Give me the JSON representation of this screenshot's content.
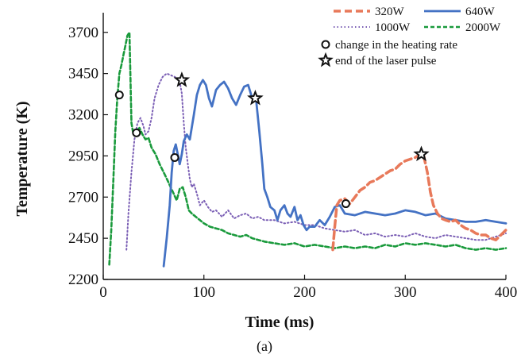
{
  "caption": "(a)",
  "chart_data": {
    "type": "line",
    "xlabel": "Time (ms)",
    "ylabel": "Temperature (K)",
    "xlim": [
      0,
      400
    ],
    "ylim": [
      2200,
      3800
    ],
    "xticks": [
      0,
      100,
      200,
      300,
      400
    ],
    "yticks": [
      2200,
      2450,
      2700,
      2950,
      3200,
      3450,
      3700
    ],
    "grid": false,
    "legend_position": "top-right",
    "series": [
      {
        "name": "320W",
        "color": "#e8795a",
        "style": "dashed",
        "points": [
          [
            228,
            2380
          ],
          [
            230,
            2520
          ],
          [
            232,
            2650
          ],
          [
            235,
            2680
          ],
          [
            240,
            2690
          ],
          [
            245,
            2660
          ],
          [
            250,
            2700
          ],
          [
            255,
            2740
          ],
          [
            260,
            2760
          ],
          [
            265,
            2790
          ],
          [
            270,
            2800
          ],
          [
            275,
            2820
          ],
          [
            280,
            2840
          ],
          [
            285,
            2860
          ],
          [
            290,
            2870
          ],
          [
            295,
            2900
          ],
          [
            300,
            2920
          ],
          [
            305,
            2930
          ],
          [
            310,
            2940
          ],
          [
            315,
            2960
          ],
          [
            318,
            2960
          ],
          [
            322,
            2850
          ],
          [
            325,
            2730
          ],
          [
            328,
            2650
          ],
          [
            332,
            2600
          ],
          [
            336,
            2570
          ],
          [
            340,
            2560
          ],
          [
            345,
            2550
          ],
          [
            350,
            2560
          ],
          [
            355,
            2530
          ],
          [
            360,
            2510
          ],
          [
            365,
            2500
          ],
          [
            370,
            2480
          ],
          [
            375,
            2470
          ],
          [
            380,
            2470
          ],
          [
            385,
            2450
          ],
          [
            390,
            2440
          ],
          [
            395,
            2470
          ],
          [
            400,
            2500
          ]
        ]
      },
      {
        "name": "640W",
        "color": "#4472c4",
        "style": "solid",
        "points": [
          [
            60,
            2280
          ],
          [
            63,
            2450
          ],
          [
            66,
            2650
          ],
          [
            68,
            2850
          ],
          [
            70,
            2980
          ],
          [
            72,
            3020
          ],
          [
            74,
            2960
          ],
          [
            76,
            2900
          ],
          [
            78,
            2960
          ],
          [
            80,
            3040
          ],
          [
            83,
            3080
          ],
          [
            86,
            3050
          ],
          [
            90,
            3200
          ],
          [
            93,
            3320
          ],
          [
            96,
            3380
          ],
          [
            99,
            3410
          ],
          [
            102,
            3380
          ],
          [
            105,
            3300
          ],
          [
            108,
            3250
          ],
          [
            112,
            3350
          ],
          [
            116,
            3380
          ],
          [
            120,
            3400
          ],
          [
            124,
            3360
          ],
          [
            128,
            3300
          ],
          [
            132,
            3260
          ],
          [
            136,
            3320
          ],
          [
            140,
            3370
          ],
          [
            144,
            3380
          ],
          [
            148,
            3300
          ],
          [
            152,
            3280
          ],
          [
            155,
            3100
          ],
          [
            158,
            2900
          ],
          [
            160,
            2750
          ],
          [
            163,
            2700
          ],
          [
            166,
            2640
          ],
          [
            170,
            2620
          ],
          [
            173,
            2560
          ],
          [
            176,
            2620
          ],
          [
            180,
            2650
          ],
          [
            183,
            2600
          ],
          [
            186,
            2580
          ],
          [
            190,
            2640
          ],
          [
            193,
            2560
          ],
          [
            196,
            2590
          ],
          [
            199,
            2530
          ],
          [
            202,
            2500
          ],
          [
            205,
            2520
          ],
          [
            210,
            2520
          ],
          [
            215,
            2560
          ],
          [
            220,
            2530
          ],
          [
            225,
            2580
          ],
          [
            230,
            2640
          ],
          [
            235,
            2650
          ],
          [
            240,
            2600
          ],
          [
            250,
            2590
          ],
          [
            260,
            2610
          ],
          [
            270,
            2600
          ],
          [
            280,
            2590
          ],
          [
            290,
            2600
          ],
          [
            300,
            2620
          ],
          [
            310,
            2610
          ],
          [
            320,
            2590
          ],
          [
            330,
            2600
          ],
          [
            340,
            2570
          ],
          [
            350,
            2560
          ],
          [
            360,
            2550
          ],
          [
            370,
            2550
          ],
          [
            380,
            2560
          ],
          [
            390,
            2550
          ],
          [
            400,
            2540
          ]
        ]
      },
      {
        "name": "1000W",
        "color": "#7b5fb5",
        "style": "dotted",
        "points": [
          [
            23,
            2380
          ],
          [
            25,
            2600
          ],
          [
            28,
            2850
          ],
          [
            31,
            3050
          ],
          [
            34,
            3150
          ],
          [
            37,
            3180
          ],
          [
            40,
            3130
          ],
          [
            42,
            3080
          ],
          [
            45,
            3100
          ],
          [
            48,
            3180
          ],
          [
            51,
            3300
          ],
          [
            55,
            3380
          ],
          [
            59,
            3430
          ],
          [
            63,
            3450
          ],
          [
            67,
            3440
          ],
          [
            71,
            3430
          ],
          [
            73,
            3420
          ],
          [
            76,
            3400
          ],
          [
            78,
            3330
          ],
          [
            80,
            3150
          ],
          [
            82,
            3000
          ],
          [
            84,
            2900
          ],
          [
            86,
            2810
          ],
          [
            88,
            2760
          ],
          [
            90,
            2780
          ],
          [
            93,
            2720
          ],
          [
            96,
            2650
          ],
          [
            100,
            2680
          ],
          [
            104,
            2640
          ],
          [
            108,
            2610
          ],
          [
            112,
            2620
          ],
          [
            118,
            2580
          ],
          [
            124,
            2620
          ],
          [
            130,
            2570
          ],
          [
            136,
            2590
          ],
          [
            142,
            2600
          ],
          [
            148,
            2570
          ],
          [
            154,
            2580
          ],
          [
            160,
            2560
          ],
          [
            170,
            2560
          ],
          [
            180,
            2540
          ],
          [
            190,
            2550
          ],
          [
            200,
            2530
          ],
          [
            210,
            2530
          ],
          [
            220,
            2510
          ],
          [
            230,
            2500
          ],
          [
            240,
            2490
          ],
          [
            250,
            2500
          ],
          [
            260,
            2470
          ],
          [
            270,
            2480
          ],
          [
            280,
            2460
          ],
          [
            290,
            2470
          ],
          [
            300,
            2460
          ],
          [
            310,
            2480
          ],
          [
            320,
            2460
          ],
          [
            330,
            2450
          ],
          [
            340,
            2470
          ],
          [
            350,
            2460
          ],
          [
            360,
            2450
          ],
          [
            370,
            2440
          ],
          [
            380,
            2440
          ],
          [
            390,
            2460
          ],
          [
            400,
            2480
          ]
        ]
      },
      {
        "name": "2000W",
        "color": "#1a9a3c",
        "style": "dashed",
        "points": [
          [
            6,
            2290
          ],
          [
            8,
            2500
          ],
          [
            10,
            2800
          ],
          [
            12,
            3100
          ],
          [
            14,
            3300
          ],
          [
            16,
            3450
          ],
          [
            18,
            3500
          ],
          [
            20,
            3560
          ],
          [
            22,
            3620
          ],
          [
            24,
            3680
          ],
          [
            26,
            3700
          ],
          [
            28,
            3150
          ],
          [
            30,
            3080
          ],
          [
            33,
            3100
          ],
          [
            36,
            3120
          ],
          [
            39,
            3080
          ],
          [
            42,
            3050
          ],
          [
            45,
            3060
          ],
          [
            48,
            3000
          ],
          [
            52,
            2960
          ],
          [
            56,
            2900
          ],
          [
            60,
            2850
          ],
          [
            64,
            2800
          ],
          [
            67,
            2760
          ],
          [
            70,
            2720
          ],
          [
            73,
            2680
          ],
          [
            76,
            2750
          ],
          [
            79,
            2760
          ],
          [
            82,
            2700
          ],
          [
            85,
            2620
          ],
          [
            88,
            2600
          ],
          [
            92,
            2580
          ],
          [
            96,
            2560
          ],
          [
            100,
            2540
          ],
          [
            106,
            2520
          ],
          [
            112,
            2510
          ],
          [
            118,
            2500
          ],
          [
            124,
            2480
          ],
          [
            130,
            2470
          ],
          [
            136,
            2460
          ],
          [
            142,
            2470
          ],
          [
            148,
            2450
          ],
          [
            154,
            2440
          ],
          [
            160,
            2430
          ],
          [
            170,
            2420
          ],
          [
            180,
            2410
          ],
          [
            190,
            2420
          ],
          [
            200,
            2400
          ],
          [
            210,
            2410
          ],
          [
            220,
            2400
          ],
          [
            230,
            2390
          ],
          [
            240,
            2400
          ],
          [
            250,
            2390
          ],
          [
            260,
            2400
          ],
          [
            270,
            2390
          ],
          [
            280,
            2410
          ],
          [
            290,
            2400
          ],
          [
            300,
            2420
          ],
          [
            310,
            2410
          ],
          [
            320,
            2420
          ],
          [
            330,
            2410
          ],
          [
            340,
            2400
          ],
          [
            350,
            2410
          ],
          [
            360,
            2390
          ],
          [
            370,
            2380
          ],
          [
            380,
            2390
          ],
          [
            390,
            2380
          ],
          [
            400,
            2390
          ]
        ]
      }
    ],
    "markers": {
      "heating_rate_change": {
        "label": "change in the heating rate",
        "symbol": "circle",
        "points": [
          [
            16,
            3320
          ],
          [
            33,
            3090
          ],
          [
            71,
            2940
          ],
          [
            241,
            2660
          ]
        ]
      },
      "laser_pulse_end": {
        "label": "end of the laser pulse",
        "symbol": "star",
        "points": [
          [
            78,
            3410
          ],
          [
            151,
            3300
          ],
          [
            316,
            2960
          ]
        ]
      }
    }
  }
}
